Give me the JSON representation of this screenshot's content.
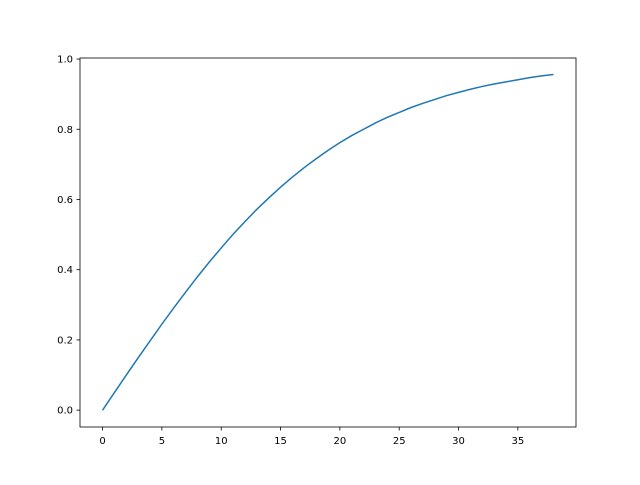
{
  "chart_data": {
    "type": "line",
    "title": "",
    "xlabel": "",
    "ylabel": "",
    "xlim": [
      -1.9,
      39.9
    ],
    "ylim": [
      -0.048,
      1.003
    ],
    "grid": false,
    "xticks": [
      0,
      5,
      10,
      15,
      20,
      25,
      30,
      35
    ],
    "xtick_labels": [
      "0",
      "5",
      "10",
      "15",
      "20",
      "25",
      "30",
      "35"
    ],
    "yticks": [
      0.0,
      0.2,
      0.4,
      0.6,
      0.8,
      1.0
    ],
    "ytick_labels": [
      "0.0",
      "0.2",
      "0.4",
      "0.6",
      "0.8",
      "1.0"
    ],
    "series": [
      {
        "color": "#1f77b4",
        "x": [
          0,
          1,
          2,
          3,
          4,
          5,
          6,
          7,
          8,
          9,
          10,
          11,
          12,
          13,
          14,
          15,
          16,
          17,
          18,
          19,
          20,
          21,
          22,
          23,
          24,
          25,
          26,
          27,
          28,
          29,
          30,
          31,
          32,
          33,
          34,
          35,
          36,
          37,
          38
        ],
        "y": [
          0,
          0.05,
          0.1,
          0.149,
          0.197,
          0.245,
          0.291,
          0.336,
          0.38,
          0.422,
          0.462,
          0.501,
          0.537,
          0.572,
          0.604,
          0.635,
          0.664,
          0.691,
          0.716,
          0.74,
          0.762,
          0.782,
          0.8,
          0.818,
          0.834,
          0.848,
          0.862,
          0.874,
          0.885,
          0.896,
          0.905,
          0.914,
          0.922,
          0.929,
          0.935,
          0.941,
          0.947,
          0.952,
          0.956
        ]
      }
    ]
  }
}
